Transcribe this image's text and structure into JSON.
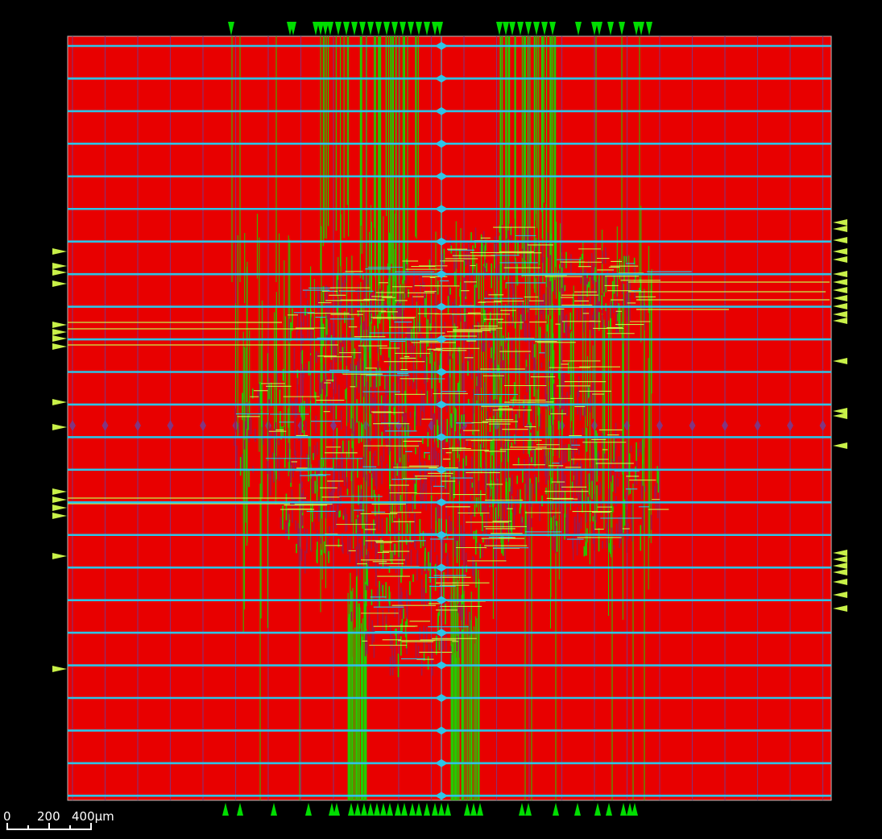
{
  "colors": {
    "background": "#000000",
    "core_fill": "#e80000",
    "power_rail": "#2ec4e6",
    "power_strap": "#7a3a8a",
    "route_green": "#22cc00",
    "route_yellow": "#c8f048",
    "cell_magenta": "#a01848",
    "pin_green": "#00dd00",
    "pin_yellow": "#c8f048",
    "scale_bar": "#ffffff"
  },
  "scale_bar": {
    "labels": [
      "0",
      "200",
      "400µm"
    ]
  }
}
